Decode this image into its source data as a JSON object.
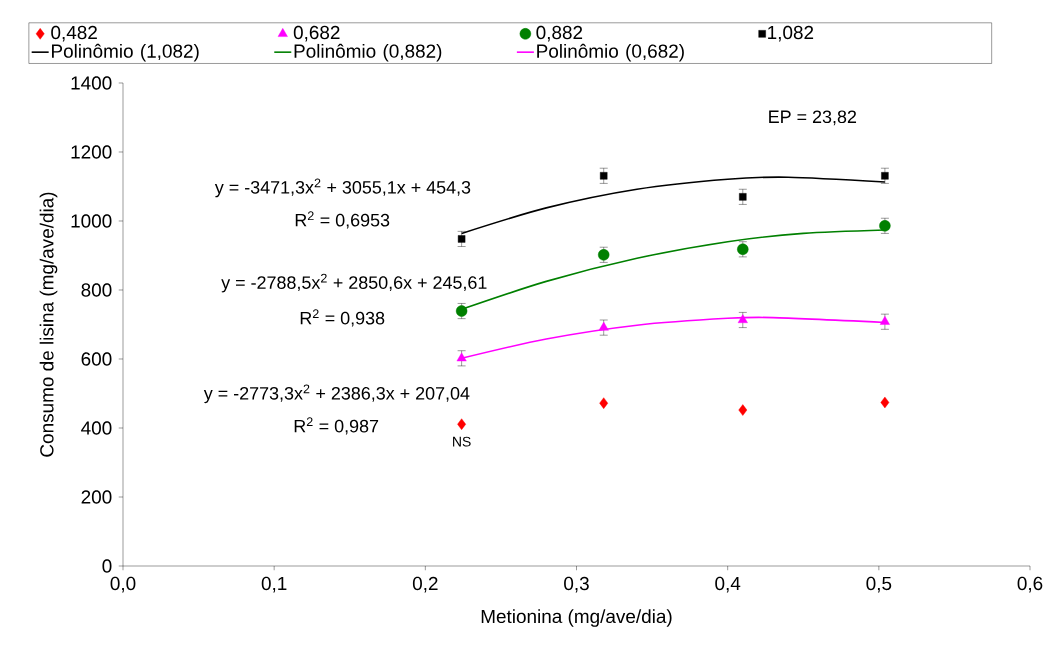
{
  "chart_data": {
    "type": "scatter",
    "xlabel": "Metionina (mg/ave/dia)",
    "ylabel": "Consumo de lisina (mg/ave/dia)",
    "xlim": [
      0,
      0.6
    ],
    "ylim": [
      0,
      1400
    ],
    "xticks": [
      {
        "value": 0,
        "label": "0,0"
      },
      {
        "value": 0.1,
        "label": "0,1"
      },
      {
        "value": 0.2,
        "label": "0,2"
      },
      {
        "value": 0.3,
        "label": "0,3"
      },
      {
        "value": 0.4,
        "label": "0,4"
      },
      {
        "value": 0.5,
        "label": "0,5"
      },
      {
        "value": 0.6,
        "label": "0,6"
      }
    ],
    "yticks": [
      0,
      200,
      400,
      600,
      800,
      1000,
      1200,
      1400
    ],
    "x": [
      0.224,
      0.318,
      0.41,
      0.504
    ],
    "legend": "top",
    "grid": false,
    "series": [
      {
        "name": "0,482",
        "marker": "diamond",
        "color": "#ff0000",
        "values": [
          411,
          472,
          452,
          474
        ]
      },
      {
        "name": "0,682",
        "marker": "triangle",
        "color": "#ff00ff",
        "values": [
          602,
          691,
          713,
          708
        ],
        "errors": [
          22,
          22,
          22,
          22
        ]
      },
      {
        "name": "0,882",
        "marker": "circle",
        "color": "#008000",
        "values": [
          739,
          902,
          918,
          986
        ],
        "errors": [
          22,
          22,
          22,
          22
        ]
      },
      {
        "name": "1,082",
        "marker": "square",
        "color": "#000000",
        "values": [
          948,
          1131,
          1070,
          1131
        ],
        "errors": [
          22,
          22,
          22,
          22
        ]
      },
      {
        "name": "Polinômio (1,082)",
        "type": "line",
        "marker": "none",
        "color": "#000000",
        "x": [
          0.224,
          0.28,
          0.34,
          0.4,
          0.44,
          0.504
        ],
        "values": [
          964,
          1038,
          1092,
          1121,
          1127,
          1113
        ]
      },
      {
        "name": "Polinômio (0,882)",
        "type": "line",
        "marker": "none",
        "color": "#008000",
        "x": [
          0.224,
          0.28,
          0.34,
          0.4,
          0.45,
          0.504
        ],
        "values": [
          744,
          825,
          892,
          940,
          964,
          974
        ]
      },
      {
        "name": "Polinômio (0,682)",
        "type": "line",
        "marker": "none",
        "color": "#ff00ff",
        "x": [
          0.224,
          0.28,
          0.34,
          0.4,
          0.43,
          0.504
        ],
        "values": [
          602,
          658,
          698,
          718,
          720,
          706
        ]
      }
    ],
    "annotations": [
      "y = -3471,3x$^{2}$ + 3055,1x + 454,3",
      "R$^{2}$ = 0,6953",
      "y = -2788,5x$^{2}$ + 2850,6x + 245,61",
      "R$^{2}$ = 0,938",
      "y = -2773,3x$^{2}$ + 2386,3x + 207,04",
      "R$^{2}$ = 0,987",
      "EP = 23,82",
      {
        "text": "NS",
        "x": 0.224,
        "y": 411
      }
    ]
  }
}
